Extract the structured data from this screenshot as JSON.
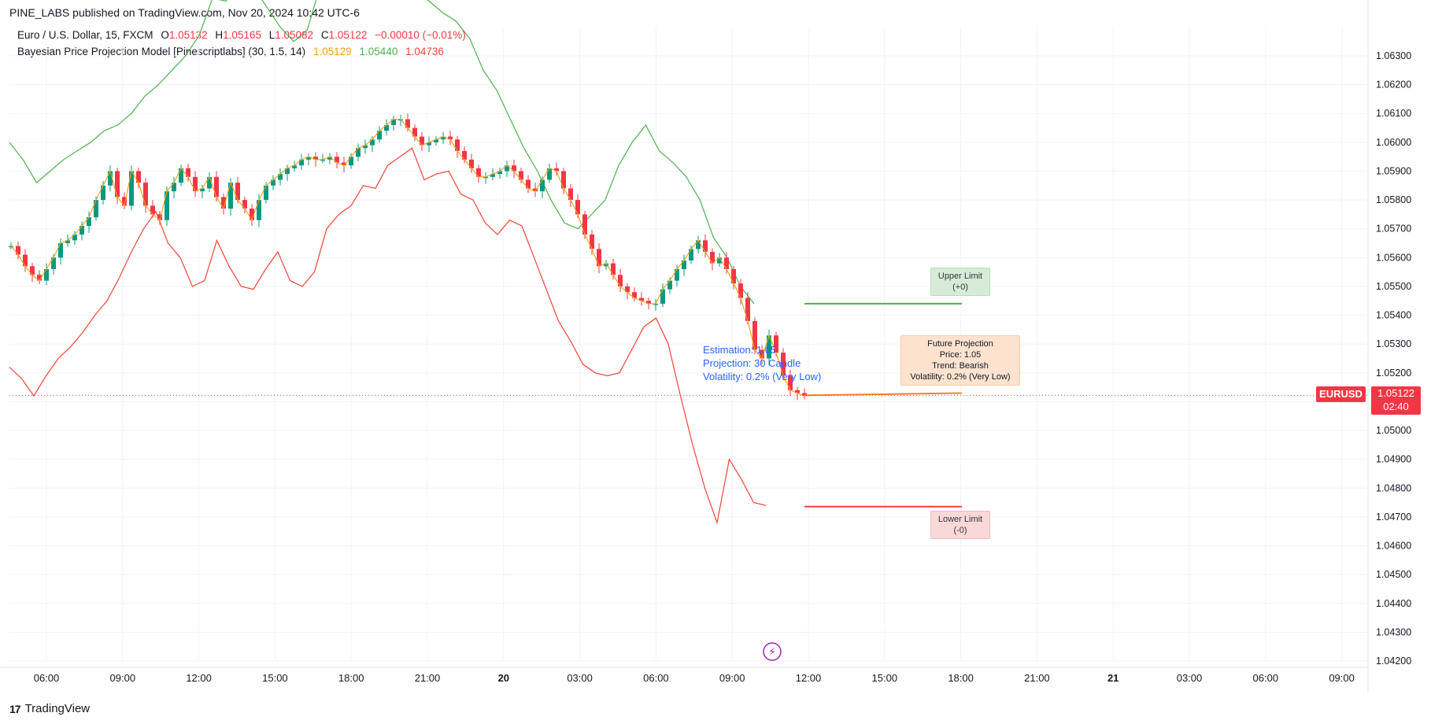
{
  "header": {
    "published": "PINE_LABS published on TradingView.com, Nov 20, 2024 10:42 UTC-6"
  },
  "legend1": {
    "symbol": "Euro / U.S. Dollar, 15, FXCM",
    "o_label": "O",
    "o": "1.05132",
    "h_label": "H",
    "h": "1.05165",
    "l_label": "L",
    "l": "1.05082",
    "c_label": "C",
    "c": "1.05122",
    "change": "−0.00010 (−0.01%)",
    "color_up": "#089981",
    "color_down": "#f23645"
  },
  "legend2": {
    "name": "Bayesian Price Projection Model [Pinescriptlabs] (30, 1.5, 14)",
    "v1": "1.05129",
    "v2": "1.05440",
    "v3": "1.04736",
    "c1": "#f59e0b",
    "c2": "#4caf50",
    "c3": "#f44336"
  },
  "annotations": {
    "upper_line1": "Upper Limit",
    "upper_line2": "(+0)",
    "lower_line1": "Lower Limit",
    "lower_line2": "(-0)",
    "future_line1": "Future Projection",
    "future_line2": "Price: 1.05",
    "future_line3": "Trend: Bearish",
    "future_line4": "Volatility: 0.2% (Very Low)",
    "est_line1": "Estimation: 1.05",
    "est_line2": "Projection: 30 Candle",
    "est_line3": "Volatility: 0.2% (Very Low)"
  },
  "price_tag": {
    "symbol": "EURUSD",
    "price": "1.05122",
    "countdown": "02:40"
  },
  "brand": {
    "name": "TradingView"
  },
  "chart_data": {
    "type": "candlestick",
    "y_ticks": [
      "1.06300",
      "1.06200",
      "1.06100",
      "1.06000",
      "1.05900",
      "1.05800",
      "1.05700",
      "1.05600",
      "1.05500",
      "1.05400",
      "1.05300",
      "1.05200",
      "1.05100",
      "1.05000",
      "1.04900",
      "1.04800",
      "1.04700",
      "1.04600",
      "1.04500",
      "1.04400",
      "1.04300",
      "1.04200"
    ],
    "ylim": [
      1.0418,
      1.0642
    ],
    "x_ticks": [
      "06:00",
      "09:00",
      "12:00",
      "15:00",
      "18:00",
      "21:00",
      "20",
      "03:00",
      "06:00",
      "09:00",
      "12:00",
      "15:00",
      "18:00",
      "21:00",
      "21",
      "03:00",
      "06:00",
      "09:00"
    ],
    "x_tick_bold": [
      false,
      false,
      false,
      false,
      false,
      false,
      true,
      false,
      false,
      false,
      false,
      false,
      false,
      false,
      true,
      false,
      false,
      false
    ],
    "close_series": [
      1.0564,
      1.0561,
      1.0557,
      1.0554,
      1.0552,
      1.0556,
      1.056,
      1.0565,
      1.0566,
      1.0568,
      1.0571,
      1.0574,
      1.058,
      1.0585,
      1.059,
      1.0581,
      1.0578,
      1.059,
      1.0586,
      1.0578,
      1.0575,
      1.0573,
      1.0583,
      1.0586,
      1.0591,
      1.0588,
      1.0583,
      1.0584,
      1.0588,
      1.0581,
      1.0577,
      1.0586,
      1.058,
      1.0577,
      1.0573,
      1.058,
      1.0585,
      1.0587,
      1.0589,
      1.0591,
      1.0592,
      1.0594,
      1.0595,
      1.0594,
      1.0594,
      1.0595,
      1.0593,
      1.0592,
      1.0595,
      1.0598,
      1.0599,
      1.0601,
      1.0604,
      1.0606,
      1.0608,
      1.0608,
      1.0605,
      1.0602,
      1.0599,
      1.06,
      1.0601,
      1.0602,
      1.0601,
      1.0597,
      1.0594,
      1.0591,
      1.0588,
      1.0588,
      1.0589,
      1.059,
      1.0592,
      1.059,
      1.0587,
      1.0584,
      1.0583,
      1.0587,
      1.0591,
      1.059,
      1.0584,
      1.058,
      1.0575,
      1.0568,
      1.0563,
      1.0557,
      1.0558,
      1.0554,
      1.055,
      1.0548,
      1.0546,
      1.0545,
      1.0544,
      1.0544,
      1.0549,
      1.0552,
      1.0556,
      1.0559,
      1.0563,
      1.0566,
      1.0562,
      1.0558,
      1.056,
      1.0556,
      1.0551,
      1.0546,
      1.0538,
      1.0528,
      1.0525,
      1.0533,
      1.0527,
      1.0519,
      1.0514,
      1.0513,
      1.0512
    ],
    "projection": {
      "start_price": 1.05122,
      "end_price": 1.0513,
      "label_x": "18:00"
    },
    "upper_band": [
      1.06,
      1.0594,
      1.0586,
      1.059,
      1.0594,
      1.0597,
      1.06,
      1.0604,
      1.0606,
      1.061,
      1.0616,
      1.062,
      1.0625,
      1.063,
      1.0637,
      1.065,
      1.0649,
      1.066,
      1.0654,
      1.0647,
      1.064,
      1.0635,
      1.0639,
      1.0655,
      1.066,
      1.0658,
      1.0655,
      1.0656,
      1.066,
      1.0658,
      1.0652,
      1.0649,
      1.0645,
      1.0642,
      1.0636,
      1.0625,
      1.0618,
      1.0608,
      1.0598,
      1.059,
      1.058,
      1.0572,
      1.057,
      1.0575,
      1.058,
      1.0592,
      1.06,
      1.0606,
      1.0597,
      1.0593,
      1.0588,
      1.058,
      1.0567,
      1.056,
      1.055,
      1.0544
    ],
    "upper_limit": 1.0544,
    "lower_band": [
      1.0522,
      1.0518,
      1.0512,
      1.0519,
      1.0525,
      1.0529,
      1.0534,
      1.054,
      1.0545,
      1.0553,
      1.0562,
      1.057,
      1.0576,
      1.0565,
      1.056,
      1.055,
      1.0552,
      1.0566,
      1.0557,
      1.055,
      1.0549,
      1.0556,
      1.0562,
      1.0552,
      1.055,
      1.0555,
      1.057,
      1.0575,
      1.0578,
      1.0585,
      1.0584,
      1.0592,
      1.0595,
      1.0598,
      1.0587,
      1.0589,
      1.059,
      1.0582,
      1.058,
      1.0572,
      1.0568,
      1.0573,
      1.0571,
      1.056,
      1.0549,
      1.0538,
      1.0531,
      1.0523,
      1.052,
      1.0519,
      1.052,
      1.0528,
      1.0536,
      1.0539,
      1.053,
      1.0512,
      1.0495,
      1.048,
      1.0468,
      1.049,
      1.0483,
      1.0475,
      1.0474
    ],
    "lower_limit": 1.04736,
    "current_price": 1.05122
  }
}
